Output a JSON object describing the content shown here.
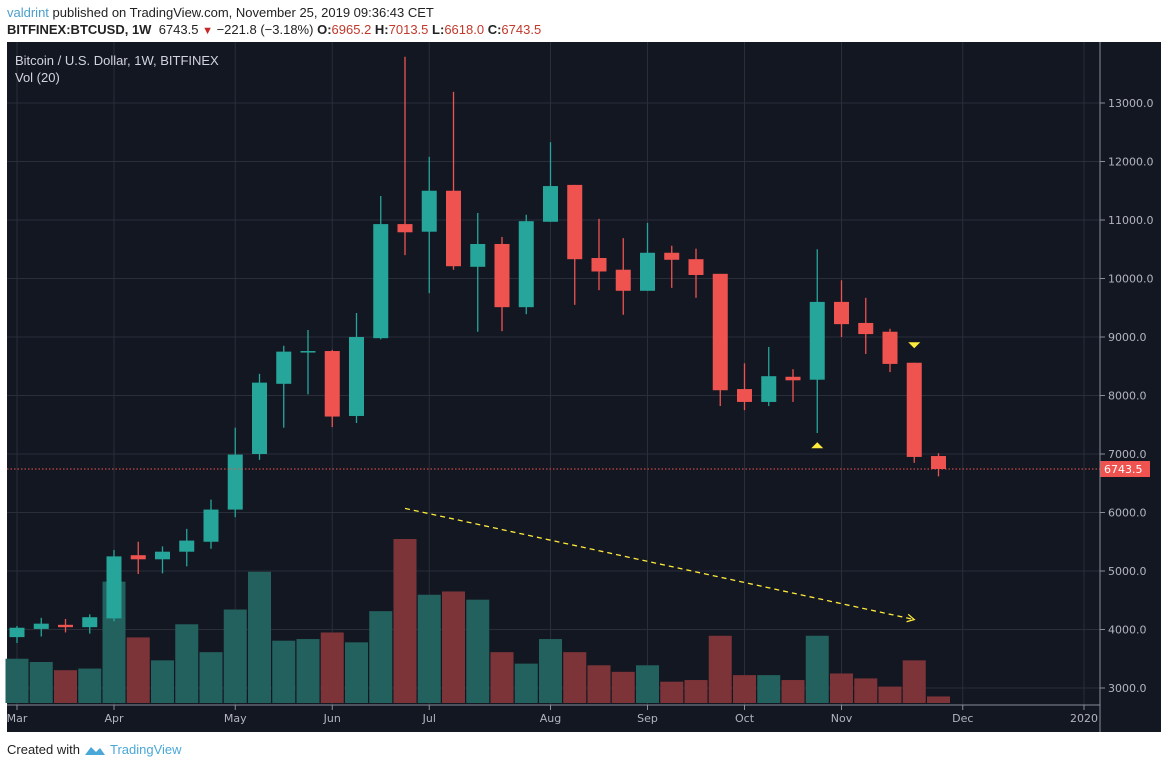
{
  "header": {
    "author": "valdrint",
    "published_text": "published on TradingView.com, November 25, 2019 09:36:43 CET",
    "symbol": "BITFINEX:BTCUSD, 1W",
    "last": "6743.5",
    "change": "−221.8 (−3.18%)",
    "change_icon": "down-triangle-icon",
    "o_label": "O:",
    "o": "6965.2",
    "h_label": "H:",
    "h": "7013.5",
    "l_label": "L:",
    "l": "6618.0",
    "c_label": "C:",
    "c": "6743.5"
  },
  "legend": {
    "series": "Bitcoin / U.S. Dollar, 1W, BITFINEX",
    "volume": "Vol (20)"
  },
  "footer": {
    "created_with": "Created with",
    "brand": "TradingView"
  },
  "colors": {
    "up": "#26a69a",
    "down": "#ef5350",
    "vol_up": "#22615e",
    "vol_down": "#7c3438",
    "background": "#131722",
    "grid": "#2a2e39",
    "marker": "#ffeb3b",
    "last_price": "#ef5350"
  },
  "chart_data": {
    "type": "candlestick",
    "interval": "1W",
    "ylim": [
      2800,
      13900
    ],
    "grid": true,
    "price_ticks": [
      "3000.0",
      "4000.0",
      "5000.0",
      "6000.0",
      "7000.0",
      "8000.0",
      "9000.0",
      "10000.0",
      "11000.0",
      "12000.0",
      "13000.0"
    ],
    "x_ticks": [
      {
        "label": "Mar",
        "week": 0
      },
      {
        "label": "Apr",
        "week": 4
      },
      {
        "label": "May",
        "week": 9
      },
      {
        "label": "Jun",
        "week": 13
      },
      {
        "label": "Jul",
        "week": 17
      },
      {
        "label": "Aug",
        "week": 22
      },
      {
        "label": "Sep",
        "week": 26
      },
      {
        "label": "Oct",
        "week": 30
      },
      {
        "label": "Nov",
        "week": 34
      },
      {
        "label": "Dec",
        "week": 39
      },
      {
        "label": "2020",
        "week": 44
      }
    ],
    "last_price_label": "6743.5",
    "candles": [
      {
        "date": "2019-03-04",
        "o": 3870,
        "h": 4060,
        "l": 3770,
        "c": 4030,
        "vol": 27
      },
      {
        "date": "2019-03-11",
        "o": 4010,
        "h": 4200,
        "l": 3880,
        "c": 4100,
        "vol": 25
      },
      {
        "date": "2019-03-18",
        "o": 4080,
        "h": 4180,
        "l": 3950,
        "c": 4040,
        "vol": 20
      },
      {
        "date": "2019-03-25",
        "o": 4040,
        "h": 4260,
        "l": 3930,
        "c": 4210,
        "vol": 21
      },
      {
        "date": "2019-04-01",
        "o": 4190,
        "h": 5360,
        "l": 4140,
        "c": 5250,
        "vol": 74
      },
      {
        "date": "2019-04-08",
        "o": 5270,
        "h": 5500,
        "l": 4950,
        "c": 5200,
        "vol": 40
      },
      {
        "date": "2019-04-15",
        "o": 5200,
        "h": 5420,
        "l": 4960,
        "c": 5330,
        "vol": 26
      },
      {
        "date": "2019-04-22",
        "o": 5330,
        "h": 5720,
        "l": 5080,
        "c": 5520,
        "vol": 48
      },
      {
        "date": "2019-04-29",
        "o": 5500,
        "h": 6220,
        "l": 5380,
        "c": 6050,
        "vol": 31
      },
      {
        "date": "2019-05-06",
        "o": 6050,
        "h": 7450,
        "l": 5920,
        "c": 6990,
        "vol": 57
      },
      {
        "date": "2019-05-13",
        "o": 7000,
        "h": 8370,
        "l": 6900,
        "c": 8220,
        "vol": 80
      },
      {
        "date": "2019-05-20",
        "o": 8200,
        "h": 8850,
        "l": 7450,
        "c": 8750,
        "vol": 38
      },
      {
        "date": "2019-05-27",
        "o": 8740,
        "h": 9120,
        "l": 8020,
        "c": 8760,
        "vol": 39
      },
      {
        "date": "2019-06-03",
        "o": 8760,
        "h": 8780,
        "l": 7460,
        "c": 7640,
        "vol": 43
      },
      {
        "date": "2019-06-10",
        "o": 7650,
        "h": 9410,
        "l": 7530,
        "c": 9000,
        "vol": 37
      },
      {
        "date": "2019-06-17",
        "o": 8980,
        "h": 11410,
        "l": 8960,
        "c": 10930,
        "vol": 56
      },
      {
        "date": "2019-06-24",
        "o": 10930,
        "h": 13790,
        "l": 10400,
        "c": 10790,
        "vol": 100
      },
      {
        "date": "2019-07-01",
        "o": 10800,
        "h": 12080,
        "l": 9750,
        "c": 11500,
        "vol": 66
      },
      {
        "date": "2019-07-08",
        "o": 11500,
        "h": 13190,
        "l": 10150,
        "c": 10210,
        "vol": 68
      },
      {
        "date": "2019-07-15",
        "o": 10200,
        "h": 11120,
        "l": 9090,
        "c": 10590,
        "vol": 63
      },
      {
        "date": "2019-07-22",
        "o": 10590,
        "h": 10710,
        "l": 9100,
        "c": 9510,
        "vol": 31
      },
      {
        "date": "2019-07-29",
        "o": 9510,
        "h": 11090,
        "l": 9390,
        "c": 10980,
        "vol": 24
      },
      {
        "date": "2019-08-05",
        "o": 10970,
        "h": 12330,
        "l": 10970,
        "c": 11580,
        "vol": 39
      },
      {
        "date": "2019-08-12",
        "o": 11600,
        "h": 11600,
        "l": 9550,
        "c": 10330,
        "vol": 31
      },
      {
        "date": "2019-08-19",
        "o": 10350,
        "h": 11020,
        "l": 9800,
        "c": 10120,
        "vol": 23
      },
      {
        "date": "2019-08-26",
        "o": 10150,
        "h": 10690,
        "l": 9380,
        "c": 9790,
        "vol": 19
      },
      {
        "date": "2019-09-02",
        "o": 9790,
        "h": 10950,
        "l": 9790,
        "c": 10440,
        "vol": 23
      },
      {
        "date": "2019-09-09",
        "o": 10440,
        "h": 10560,
        "l": 9840,
        "c": 10320,
        "vol": 13
      },
      {
        "date": "2019-09-16",
        "o": 10330,
        "h": 10510,
        "l": 9670,
        "c": 10060,
        "vol": 14
      },
      {
        "date": "2019-09-23",
        "o": 10080,
        "h": 10080,
        "l": 7820,
        "c": 8090,
        "vol": 41
      },
      {
        "date": "2019-09-30",
        "o": 8110,
        "h": 8550,
        "l": 7750,
        "c": 7890,
        "vol": 17
      },
      {
        "date": "2019-10-07",
        "o": 7890,
        "h": 8830,
        "l": 7820,
        "c": 8330,
        "vol": 17
      },
      {
        "date": "2019-10-14",
        "o": 8320,
        "h": 8450,
        "l": 7890,
        "c": 8260,
        "vol": 14
      },
      {
        "date": "2019-10-21",
        "o": 8270,
        "h": 10500,
        "l": 7360,
        "c": 9600,
        "vol": 41
      },
      {
        "date": "2019-10-28",
        "o": 9600,
        "h": 9970,
        "l": 9000,
        "c": 9220,
        "vol": 18
      },
      {
        "date": "2019-11-04",
        "o": 9240,
        "h": 9670,
        "l": 8710,
        "c": 9050,
        "vol": 15
      },
      {
        "date": "2019-11-11",
        "o": 9090,
        "h": 9140,
        "l": 8400,
        "c": 8540,
        "vol": 10
      },
      {
        "date": "2019-11-18",
        "o": 8560,
        "h": 8560,
        "l": 6850,
        "c": 6950,
        "vol": 26
      },
      {
        "date": "2019-11-25",
        "o": 6965.2,
        "h": 7013.5,
        "l": 6618.0,
        "c": 6743.5,
        "vol": 4
      }
    ],
    "volume_units": "relative percent of max",
    "markers": [
      {
        "week": 33,
        "type": "up-arrow",
        "price": 7150
      },
      {
        "week": 37,
        "type": "down-arrow",
        "price": 8860
      }
    ],
    "trendline": {
      "style": "dashed",
      "color": "#ffeb3b",
      "from": {
        "week": 16,
        "price": 6070
      },
      "to": {
        "week": 37,
        "price": 4170
      },
      "arrow": true
    }
  }
}
